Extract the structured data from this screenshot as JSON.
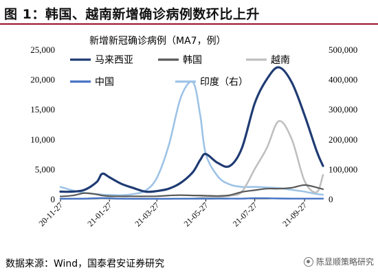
{
  "header": {
    "title": "图 1：韩国、越南新增确诊病例数环比上升"
  },
  "footer": {
    "source": "数据来源：Wind，国泰君安证券研究",
    "watermark": "陈显顺策略研究"
  },
  "chart_data": {
    "type": "line",
    "title": "新增新冠确诊病例（MA7，例）",
    "left_axis": {
      "ticks": [
        "0",
        "5,000",
        "10,000",
        "15,000",
        "20,000",
        "25,000"
      ],
      "ylim": [
        0,
        25000
      ]
    },
    "right_axis": {
      "ticks": [
        "0",
        "100,000",
        "200,000",
        "300,000",
        "400,000",
        "500,000"
      ],
      "ylim": [
        0,
        500000
      ]
    },
    "x_ticks": [
      "20-11-27",
      "21-01-27",
      "21-03-27",
      "21-05-27",
      "21-07-27",
      "21-09-27"
    ],
    "grid": false,
    "legend": [
      "马来西亚",
      "韩国",
      "越南",
      "中国",
      "印度（右）"
    ],
    "x": [
      "20-11-27",
      "20-12-12",
      "20-12-27",
      "21-01-11",
      "21-01-18",
      "21-01-27",
      "21-02-11",
      "21-02-26",
      "21-03-13",
      "21-03-27",
      "21-04-11",
      "21-04-26",
      "21-05-11",
      "21-05-20",
      "21-05-27",
      "21-06-11",
      "21-06-26",
      "21-07-11",
      "21-07-27",
      "21-08-11",
      "21-08-26",
      "21-09-11",
      "21-09-27",
      "21-10-12",
      "21-10-20"
    ],
    "series": [
      {
        "name": "马来西亚",
        "axis": "left",
        "color": "#1f3b73",
        "width": 3.2,
        "values": [
          1200,
          1200,
          1500,
          2800,
          4200,
          3600,
          2500,
          1800,
          1200,
          1300,
          1700,
          2700,
          4500,
          6500,
          7500,
          6000,
          5500,
          8500,
          16000,
          20000,
          22000,
          19500,
          14000,
          8000,
          5500
        ]
      },
      {
        "name": "韩国",
        "axis": "left",
        "color": "#595959",
        "width": 2.2,
        "values": [
          400,
          550,
          950,
          750,
          550,
          450,
          420,
          420,
          420,
          440,
          560,
          620,
          560,
          560,
          540,
          480,
          620,
          1150,
          1450,
          1700,
          1700,
          1850,
          2300,
          1900,
          1600
        ]
      },
      {
        "name": "越南",
        "axis": "left",
        "color": "#bfbfbf",
        "width": 2.6,
        "values": [
          5,
          5,
          5,
          5,
          50,
          20,
          30,
          20,
          10,
          10,
          10,
          20,
          50,
          200,
          300,
          300,
          500,
          1200,
          5000,
          8500,
          13000,
          10000,
          3000,
          1100,
          4000
        ]
      },
      {
        "name": "中国",
        "axis": "left",
        "color": "#4472c4",
        "width": 2.4,
        "values": [
          20,
          20,
          30,
          100,
          130,
          100,
          20,
          10,
          10,
          10,
          15,
          20,
          20,
          20,
          20,
          30,
          30,
          40,
          100,
          100,
          60,
          40,
          40,
          30,
          40
        ]
      },
      {
        "name": "印度（右）",
        "axis": "right",
        "color": "#9dc3e6",
        "width": 2.6,
        "values": [
          40000,
          28000,
          20000,
          16000,
          14000,
          13000,
          12000,
          16000,
          28000,
          70000,
          180000,
          340000,
          390000,
          280000,
          150000,
          75000,
          48000,
          40000,
          40000,
          38000,
          36000,
          30000,
          24000,
          16000,
          14000
        ]
      }
    ]
  }
}
